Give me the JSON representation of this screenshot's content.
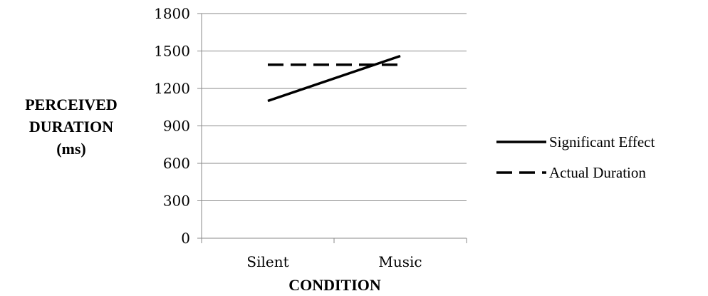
{
  "chart_data": {
    "type": "line",
    "title": "",
    "xlabel": "CONDITION",
    "ylabel_lines": [
      "PERCEIVED",
      "DURATION",
      "(ms)"
    ],
    "categories": [
      "Silent",
      "Music"
    ],
    "ylim": [
      0,
      1800
    ],
    "yticks": [
      "0",
      "300",
      "600",
      "900",
      "1200",
      "1500",
      "1800"
    ],
    "grid": true,
    "legend_position": "right",
    "series": [
      {
        "name": "Significant Effect",
        "values": [
          1100,
          1460
        ],
        "style": "solid",
        "color": "#000000"
      },
      {
        "name": "Actual Duration",
        "values": [
          1390,
          1390
        ],
        "style": "dashed",
        "color": "#000000"
      }
    ]
  }
}
